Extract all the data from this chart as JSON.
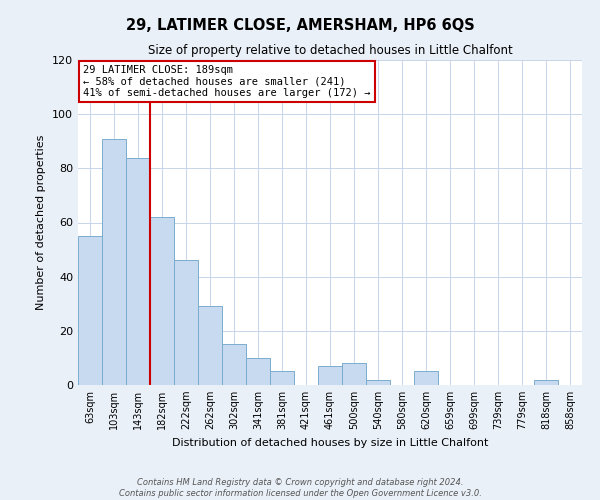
{
  "title": "29, LATIMER CLOSE, AMERSHAM, HP6 6QS",
  "subtitle": "Size of property relative to detached houses in Little Chalfont",
  "xlabel": "Distribution of detached houses by size in Little Chalfont",
  "ylabel": "Number of detached properties",
  "bar_labels": [
    "63sqm",
    "103sqm",
    "143sqm",
    "182sqm",
    "222sqm",
    "262sqm",
    "302sqm",
    "341sqm",
    "381sqm",
    "421sqm",
    "461sqm",
    "500sqm",
    "540sqm",
    "580sqm",
    "620sqm",
    "659sqm",
    "699sqm",
    "739sqm",
    "779sqm",
    "818sqm",
    "858sqm"
  ],
  "bar_values": [
    55,
    91,
    84,
    62,
    46,
    29,
    15,
    10,
    5,
    0,
    7,
    8,
    2,
    0,
    5,
    0,
    0,
    0,
    0,
    2,
    0
  ],
  "bar_color": "#c8daf0",
  "bar_edge_color": "#7aacce",
  "ylim": [
    0,
    120
  ],
  "yticks": [
    0,
    20,
    40,
    60,
    80,
    100,
    120
  ],
  "property_line_color": "#cc0000",
  "annotation_title": "29 LATIMER CLOSE: 189sqm",
  "annotation_line1": "← 58% of detached houses are smaller (241)",
  "annotation_line2": "41% of semi-detached houses are larger (172) →",
  "annotation_box_color": "#ffffff",
  "annotation_box_edge": "#cc0000",
  "footer_line1": "Contains HM Land Registry data © Crown copyright and database right 2024.",
  "footer_line2": "Contains public sector information licensed under the Open Government Licence v3.0.",
  "bg_color": "#eaf0f8",
  "plot_bg_color": "#ffffff",
  "grid_color": "#c8d4e8"
}
